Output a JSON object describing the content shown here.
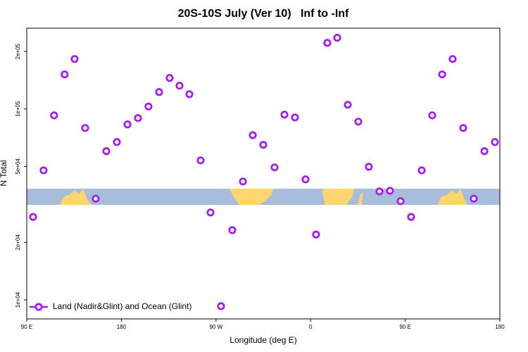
{
  "chart_data": {
    "type": "scatter",
    "title": "20S-10S July (Ver 10)   Inf to -Inf",
    "x_label": "Longitude (deg E)",
    "y_label": "N Total",
    "log_y": true,
    "xlim": [
      90,
      540
    ],
    "xticks": [
      {
        "value": 90,
        "label": "90 E"
      },
      {
        "value": 180,
        "label": "180"
      },
      {
        "value": 270,
        "label": "90 W"
      },
      {
        "value": 360,
        "label": "0"
      },
      {
        "value": 450,
        "label": "90 E"
      },
      {
        "value": 540,
        "label": "180"
      }
    ],
    "ylim": [
      7950,
      265000
    ],
    "yticks": [
      {
        "value": 10000,
        "label": "1e+04"
      },
      {
        "value": 20000,
        "label": "2e+04"
      },
      {
        "value": 50000,
        "label": "5e+04"
      },
      {
        "value": 100000,
        "label": "1e+05"
      },
      {
        "value": 200000,
        "label": "2e+05"
      }
    ],
    "legend_position": "bottom-left",
    "series": [
      {
        "name": "Land (Nadir&Glint) and Ocean (Glint)",
        "color": "#a020f0",
        "x": [
          96,
          106,
          116,
          126,
          135.5,
          145.6,
          155.6,
          165.7,
          175.7,
          185.8,
          195.8,
          205.8,
          215.9,
          225.9,
          235.3,
          244.7,
          255.4,
          264.8,
          274.8,
          285.5,
          295.6,
          305,
          315,
          325.7,
          335.1,
          345.1,
          355.2,
          365.2,
          375.9,
          385.3,
          395.4,
          405.4,
          415.4,
          425.5,
          435.5,
          445.6,
          455.6,
          465.7,
          475.7,
          485.1,
          495.1,
          505.2,
          515.2,
          525.3,
          535.3
        ],
        "values": [
          27200,
          47700,
          92600,
          151700,
          182700,
          79500,
          33900,
          60100,
          67100,
          83000,
          89600,
          103000,
          122600,
          145300,
          132400,
          119500,
          53800,
          28700,
          9270,
          23200,
          41700,
          72900,
          64900,
          49400,
          93400,
          90300,
          42800,
          22000,
          222000,
          236000,
          105200,
          85800,
          49800,
          37000,
          37300,
          32900,
          27200,
          47700,
          92600,
          151700,
          182700,
          79500,
          33900,
          60100,
          67100
        ]
      }
    ]
  }
}
